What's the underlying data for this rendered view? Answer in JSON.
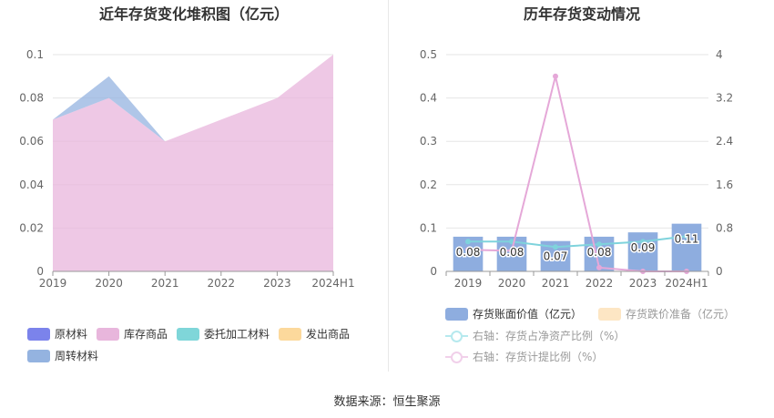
{
  "footer": {
    "source": "数据来源：恒生聚源"
  },
  "chart_data": [
    {
      "type": "area",
      "title": "近年存货变化堆积图（亿元）",
      "categories": [
        "2019",
        "2020",
        "2021",
        "2022",
        "2023",
        "2024H1"
      ],
      "ylim": [
        0,
        0.1
      ],
      "yticks": [
        "0",
        "0.02",
        "0.04",
        "0.06",
        "0.08",
        "0.1"
      ],
      "grid": true,
      "legend_position": "bottom-left",
      "series": [
        {
          "name": "原材料",
          "color": "#7b83eb",
          "values": [
            0,
            0,
            0,
            0,
            0,
            0
          ]
        },
        {
          "name": "库存商品",
          "color": "#e8b6dc",
          "values": [
            0.07,
            0.08,
            0.06,
            0.07,
            0.08,
            0.1
          ]
        },
        {
          "name": "委托加工材料",
          "color": "#7fd6d9",
          "values": [
            0,
            0,
            0,
            0,
            0,
            0
          ]
        },
        {
          "name": "发出商品",
          "color": "#fcd99c",
          "values": [
            0,
            0,
            0,
            0,
            0,
            0
          ]
        },
        {
          "name": "周转材料",
          "color": "#94b3e0",
          "values": [
            0,
            0.01,
            0,
            0,
            0,
            0
          ]
        }
      ]
    },
    {
      "type": "bar",
      "title": "历年存货变动情况",
      "categories": [
        "2019",
        "2020",
        "2021",
        "2022",
        "2023",
        "2024H1"
      ],
      "ylim": [
        0,
        0.5
      ],
      "yticks": [
        "0",
        "0.1",
        "0.2",
        "0.3",
        "0.4",
        "0.5"
      ],
      "y2lim": [
        0,
        4
      ],
      "y2ticks": [
        "0",
        "0.8",
        "1.6",
        "2.4",
        "3.2",
        "4"
      ],
      "grid": true,
      "legend_position": "bottom",
      "bars": [
        {
          "name": "存货账面价值（亿元）",
          "color": "#8eaddf",
          "values": [
            0.08,
            0.08,
            0.07,
            0.08,
            0.09,
            0.11
          ],
          "labels": [
            "0.08",
            "0.08",
            "0.07",
            "0.08",
            "0.09",
            "0.11"
          ]
        },
        {
          "name": "存货跌价准备（亿元）",
          "color": "#fde6c4",
          "values": [
            0,
            0,
            0,
            0,
            0,
            0
          ]
        }
      ],
      "lines": [
        {
          "name": "右轴：存货占净资产比例（%）",
          "color": "#7fd3dc",
          "values": [
            0.55,
            0.55,
            0.45,
            0.5,
            0.55,
            0.65
          ]
        },
        {
          "name": "右轴：存货计提比例（%）",
          "color": "#e5a8d8",
          "values": [
            0.4,
            0.38,
            3.6,
            0.07,
            0,
            0
          ]
        }
      ]
    }
  ]
}
